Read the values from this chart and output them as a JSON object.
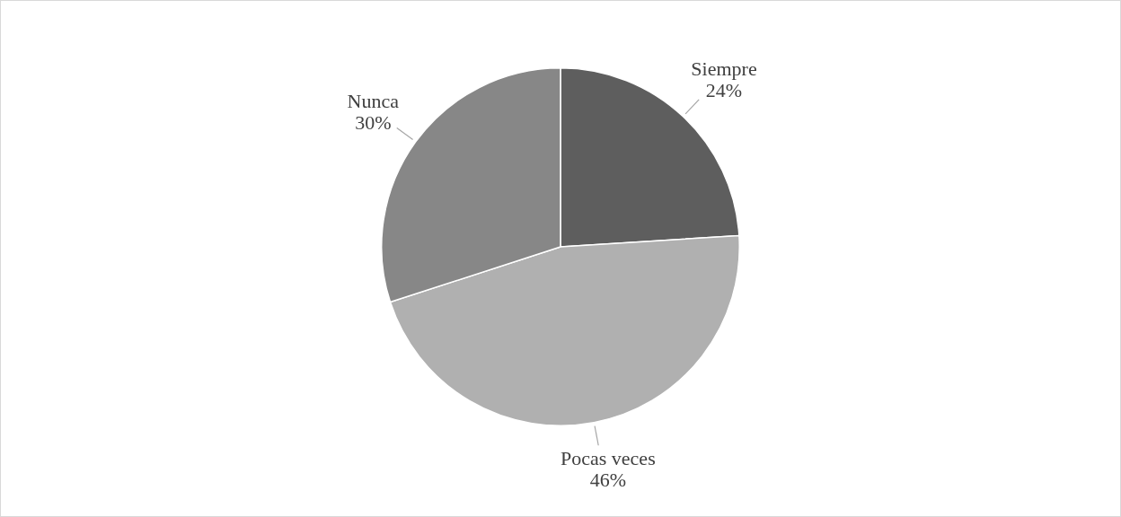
{
  "chart_data": {
    "type": "pie",
    "categories": [
      "Siempre",
      "Pocas veces",
      "Nunca"
    ],
    "values": [
      24,
      46,
      30
    ],
    "colors": [
      "#5e5e5e",
      "#b0b0b0",
      "#878787"
    ],
    "value_labels": [
      "24%",
      "46%",
      "30%"
    ]
  }
}
